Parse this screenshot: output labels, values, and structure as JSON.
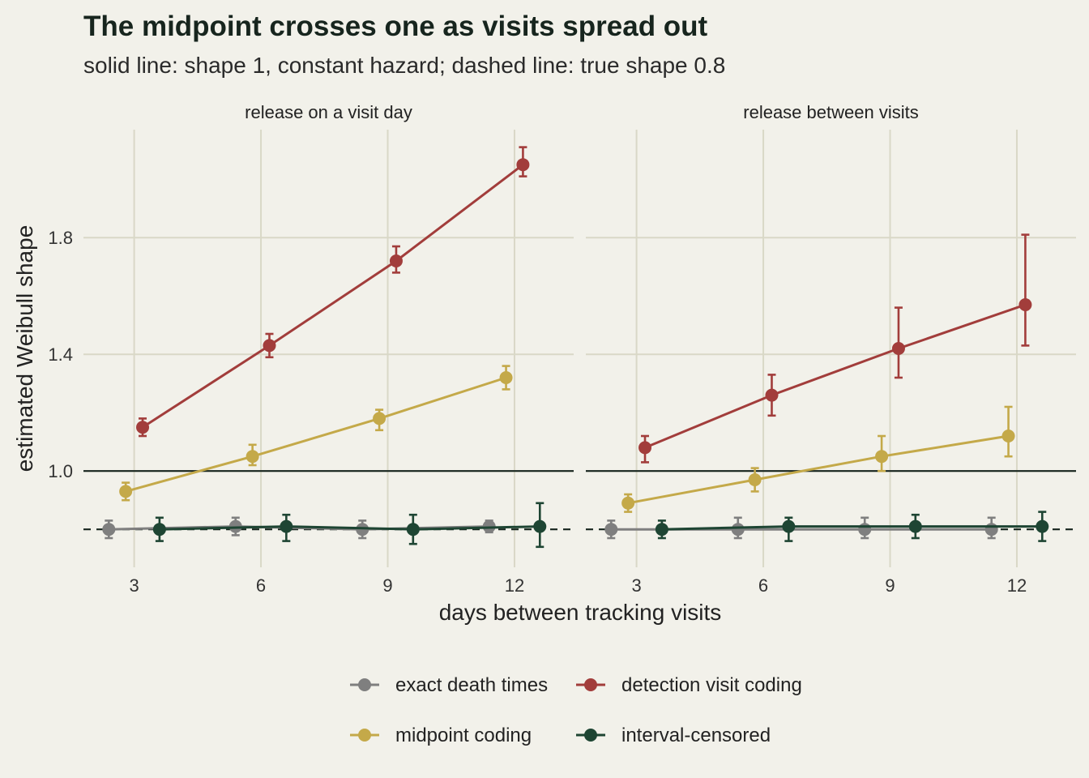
{
  "chart_data": {
    "type": "line",
    "title": "The midpoint crosses one as visits spread out",
    "subtitle": "solid line: shape 1, constant hazard; dashed line: true shape 0.8",
    "xlabel": "days between tracking visits",
    "ylabel": "estimated Weibull shape",
    "x_ticks": [
      3,
      6,
      9,
      12
    ],
    "y_ticks": [
      1.0,
      1.4,
      1.8
    ],
    "y_tick_labels": [
      "1.0",
      "1.4",
      "1.8"
    ],
    "xlim": [
      1.8,
      13.4
    ],
    "ylim": [
      0.67,
      2.17
    ],
    "reference_lines": [
      {
        "y": 1.0,
        "style": "solid"
      },
      {
        "y": 0.8,
        "style": "dashed"
      }
    ],
    "grid": true,
    "legend_position": "bottom",
    "panels": [
      {
        "label": "release on a visit day",
        "series": [
          {
            "name": "exact death times",
            "color": "#7f7f7f",
            "points": [
              {
                "x": 2.4,
                "y": 0.8,
                "lo": 0.77,
                "hi": 0.83
              },
              {
                "x": 5.4,
                "y": 0.81,
                "lo": 0.78,
                "hi": 0.84
              },
              {
                "x": 8.4,
                "y": 0.8,
                "lo": 0.77,
                "hi": 0.83
              },
              {
                "x": 11.4,
                "y": 0.81,
                "lo": 0.79,
                "hi": 0.83
              }
            ]
          },
          {
            "name": "detection visit coding",
            "color": "#a23d3b",
            "points": [
              {
                "x": 3.2,
                "y": 1.15,
                "lo": 1.12,
                "hi": 1.18
              },
              {
                "x": 6.2,
                "y": 1.43,
                "lo": 1.39,
                "hi": 1.47
              },
              {
                "x": 9.2,
                "y": 1.72,
                "lo": 1.68,
                "hi": 1.77
              },
              {
                "x": 12.2,
                "y": 2.05,
                "lo": 2.01,
                "hi": 2.11
              }
            ]
          },
          {
            "name": "midpoint coding",
            "color": "#c4a949",
            "points": [
              {
                "x": 2.8,
                "y": 0.93,
                "lo": 0.9,
                "hi": 0.96
              },
              {
                "x": 5.8,
                "y": 1.05,
                "lo": 1.02,
                "hi": 1.09
              },
              {
                "x": 8.8,
                "y": 1.18,
                "lo": 1.14,
                "hi": 1.21
              },
              {
                "x": 11.8,
                "y": 1.32,
                "lo": 1.28,
                "hi": 1.36
              }
            ]
          },
          {
            "name": "interval-censored",
            "color": "#1e4533",
            "points": [
              {
                "x": 3.6,
                "y": 0.8,
                "lo": 0.76,
                "hi": 0.84
              },
              {
                "x": 6.6,
                "y": 0.81,
                "lo": 0.76,
                "hi": 0.85
              },
              {
                "x": 9.6,
                "y": 0.8,
                "lo": 0.75,
                "hi": 0.85
              },
              {
                "x": 12.6,
                "y": 0.81,
                "lo": 0.74,
                "hi": 0.89
              }
            ]
          }
        ]
      },
      {
        "label": "release between visits",
        "series": [
          {
            "name": "exact death times",
            "color": "#7f7f7f",
            "points": [
              {
                "x": 2.4,
                "y": 0.8,
                "lo": 0.77,
                "hi": 0.83
              },
              {
                "x": 5.4,
                "y": 0.8,
                "lo": 0.77,
                "hi": 0.84
              },
              {
                "x": 8.4,
                "y": 0.8,
                "lo": 0.77,
                "hi": 0.84
              },
              {
                "x": 11.4,
                "y": 0.8,
                "lo": 0.77,
                "hi": 0.84
              }
            ]
          },
          {
            "name": "detection visit coding",
            "color": "#a23d3b",
            "points": [
              {
                "x": 3.2,
                "y": 1.08,
                "lo": 1.03,
                "hi": 1.12
              },
              {
                "x": 6.2,
                "y": 1.26,
                "lo": 1.19,
                "hi": 1.33
              },
              {
                "x": 9.2,
                "y": 1.42,
                "lo": 1.32,
                "hi": 1.56
              },
              {
                "x": 12.2,
                "y": 1.57,
                "lo": 1.43,
                "hi": 1.81
              }
            ]
          },
          {
            "name": "midpoint coding",
            "color": "#c4a949",
            "points": [
              {
                "x": 2.8,
                "y": 0.89,
                "lo": 0.86,
                "hi": 0.92
              },
              {
                "x": 5.8,
                "y": 0.97,
                "lo": 0.93,
                "hi": 1.01
              },
              {
                "x": 8.8,
                "y": 1.05,
                "lo": 1.0,
                "hi": 1.12
              },
              {
                "x": 11.8,
                "y": 1.12,
                "lo": 1.05,
                "hi": 1.22
              }
            ]
          },
          {
            "name": "interval-censored",
            "color": "#1e4533",
            "points": [
              {
                "x": 3.6,
                "y": 0.8,
                "lo": 0.77,
                "hi": 0.83
              },
              {
                "x": 6.6,
                "y": 0.81,
                "lo": 0.76,
                "hi": 0.84
              },
              {
                "x": 9.6,
                "y": 0.81,
                "lo": 0.77,
                "hi": 0.85
              },
              {
                "x": 12.6,
                "y": 0.81,
                "lo": 0.76,
                "hi": 0.86
              }
            ]
          }
        ]
      }
    ],
    "legend": [
      {
        "name": "exact death times",
        "color": "#7f7f7f"
      },
      {
        "name": "detection visit coding",
        "color": "#a23d3b"
      },
      {
        "name": "midpoint coding",
        "color": "#c4a949"
      },
      {
        "name": "interval-censored",
        "color": "#1e4533"
      }
    ]
  }
}
